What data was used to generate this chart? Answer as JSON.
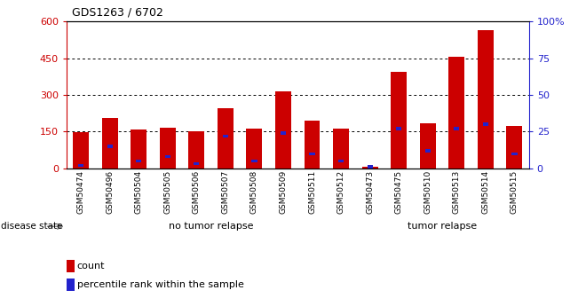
{
  "title": "GDS1263 / 6702",
  "samples": [
    "GSM50474",
    "GSM50496",
    "GSM50504",
    "GSM50505",
    "GSM50506",
    "GSM50507",
    "GSM50508",
    "GSM50509",
    "GSM50511",
    "GSM50512",
    "GSM50473",
    "GSM50475",
    "GSM50510",
    "GSM50513",
    "GSM50514",
    "GSM50515"
  ],
  "counts": [
    148,
    205,
    158,
    165,
    152,
    245,
    162,
    315,
    193,
    162,
    5,
    395,
    183,
    455,
    565,
    172
  ],
  "percentiles": [
    2,
    15,
    5,
    8,
    3,
    22,
    5,
    24,
    10,
    5,
    1,
    27,
    12,
    27,
    30,
    10
  ],
  "group1_count": 10,
  "group1_label": "no tumor relapse",
  "group2_label": "tumor relapse",
  "group1_color": "#ccffcc",
  "group2_color": "#66ee66",
  "bar_color": "#cc0000",
  "blue_color": "#2222cc",
  "left_ylim": [
    0,
    600
  ],
  "right_ylim": [
    0,
    100
  ],
  "left_yticks": [
    0,
    150,
    300,
    450,
    600
  ],
  "right_yticks": [
    0,
    25,
    50,
    75,
    100
  ],
  "right_yticklabels": [
    "0",
    "25",
    "50",
    "75",
    "100%"
  ],
  "background_gray": "#d0d0d0",
  "legend_count_label": "count",
  "legend_pct_label": "percentile rank within the sample",
  "disease_state_label": "disease state"
}
